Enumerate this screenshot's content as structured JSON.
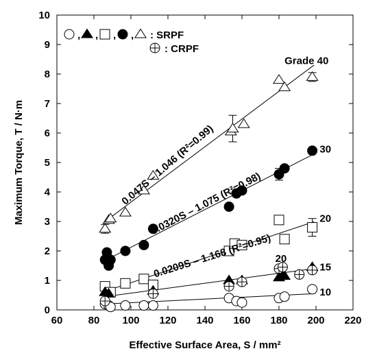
{
  "chart_data": {
    "type": "scatter",
    "xlabel": "Effective Surface Area, S / mm²",
    "ylabel": "Maximum Torque, T / N·m",
    "xlim": [
      60,
      220
    ],
    "ylim": [
      0,
      10
    ],
    "xticks": [
      "60",
      "80",
      "100",
      "120",
      "140",
      "160",
      "180",
      "200",
      "220"
    ],
    "yticks": [
      "0",
      "1",
      "2",
      "3",
      "4",
      "5",
      "6",
      "7",
      "8",
      "9",
      "10"
    ],
    "grid": false,
    "legend": {
      "placement": "top-left",
      "entries": [
        {
          "symbols": [
            "circle-open",
            "triangle-filled",
            "square-open",
            "circle-filled",
            "triangle-open"
          ],
          "label": ": SRPF"
        },
        {
          "symbols": [
            "circle-cross"
          ],
          "label": ": CRPF"
        }
      ]
    },
    "series": [
      {
        "name": "Grade 40",
        "marker": "triangle-open",
        "points": [
          [
            86,
            2.75
          ],
          [
            88,
            3.05
          ],
          [
            89,
            3.1
          ],
          [
            97,
            3.3
          ],
          [
            107,
            4.05
          ],
          [
            112,
            4.55
          ],
          [
            154,
            6.05
          ],
          [
            155,
            6.15
          ],
          [
            161,
            6.3
          ],
          [
            180,
            7.8
          ],
          [
            183,
            7.55
          ],
          [
            198,
            7.9
          ]
        ],
        "errors": [
          [
            86,
            0.15
          ],
          [
            155,
            0.45
          ],
          [
            198,
            0.15
          ]
        ],
        "fit": {
          "label": "0.047S – 1.046 (R²=0.99)",
          "slope": 0.047,
          "intercept": -1.046,
          "x": [
            86,
            199
          ]
        }
      },
      {
        "name": "30",
        "marker": "circle-filled",
        "points": [
          [
            86,
            1.7
          ],
          [
            87,
            1.95
          ],
          [
            88,
            1.5
          ],
          [
            89,
            1.7
          ],
          [
            97,
            2.0
          ],
          [
            107,
            2.2
          ],
          [
            112,
            2.75
          ],
          [
            153,
            3.5
          ],
          [
            157,
            3.95
          ],
          [
            160,
            4.05
          ],
          [
            180,
            4.6
          ],
          [
            183,
            4.8
          ],
          [
            198,
            5.4
          ]
        ],
        "errors": [
          [
            180,
            0.2
          ]
        ],
        "fit": {
          "label": "0.0320S – 1.075 (R²=0.98)",
          "slope": 0.032,
          "intercept": -1.075,
          "x": [
            86,
            199
          ]
        }
      },
      {
        "name": "20",
        "marker": "square-open",
        "points": [
          [
            86,
            0.8
          ],
          [
            89,
            0.6
          ],
          [
            97,
            0.9
          ],
          [
            107,
            1.05
          ],
          [
            112,
            0.85
          ],
          [
            153,
            2.0
          ],
          [
            156,
            2.25
          ],
          [
            160,
            2.2
          ],
          [
            180,
            3.05
          ],
          [
            183,
            2.4
          ],
          [
            198,
            2.8
          ]
        ],
        "errors": [
          [
            198,
            0.3
          ]
        ],
        "fit": {
          "label": "0.0209S – 1.168 (R²=0.95)",
          "slope": 0.0209,
          "intercept": -1.168,
          "x": [
            86,
            199
          ]
        }
      },
      {
        "name": "15",
        "marker": "triangle-filled",
        "points": [
          [
            86,
            0.6
          ],
          [
            88,
            0.55
          ],
          [
            112,
            0.65
          ],
          [
            153,
            1.0
          ],
          [
            160,
            1.0
          ],
          [
            180,
            1.1
          ],
          [
            182,
            1.2
          ],
          [
            183,
            1.15
          ],
          [
            198,
            1.45
          ]
        ],
        "fit": {
          "x": [
            86,
            199
          ],
          "y": [
            0.45,
            1.4
          ]
        }
      },
      {
        "name": "10",
        "marker": "circle-open",
        "points": [
          [
            86,
            0.2
          ],
          [
            88,
            0.15
          ],
          [
            89,
            0.1
          ],
          [
            97,
            0.15
          ],
          [
            107,
            0.15
          ],
          [
            112,
            0.15
          ],
          [
            153,
            0.4
          ],
          [
            157,
            0.3
          ],
          [
            160,
            0.25
          ],
          [
            180,
            0.4
          ],
          [
            183,
            0.45
          ],
          [
            198,
            0.7
          ]
        ],
        "fit": {
          "x": [
            86,
            199
          ],
          "y": [
            0.2,
            0.55
          ]
        }
      },
      {
        "name": "CRPF",
        "marker": "circle-cross",
        "points": [
          [
            86,
            0.3
          ],
          [
            112,
            0.55
          ],
          [
            153,
            0.8
          ],
          [
            160,
            0.95
          ],
          [
            180,
            1.4
          ],
          [
            182,
            1.45
          ],
          [
            191,
            1.2
          ],
          [
            198,
            1.35
          ]
        ]
      }
    ],
    "annotations": [
      {
        "text": "Grade 40",
        "x": 183,
        "y": 8.45
      },
      {
        "text": "30",
        "x": 202,
        "y": 5.45
      },
      {
        "text": "20",
        "x": 202,
        "y": 3.1
      },
      {
        "text": "15",
        "x": 202,
        "y": 1.45
      },
      {
        "text": "10",
        "x": 202,
        "y": 0.6
      },
      {
        "text": "20",
        "x": 178,
        "y": 1.75
      }
    ]
  }
}
